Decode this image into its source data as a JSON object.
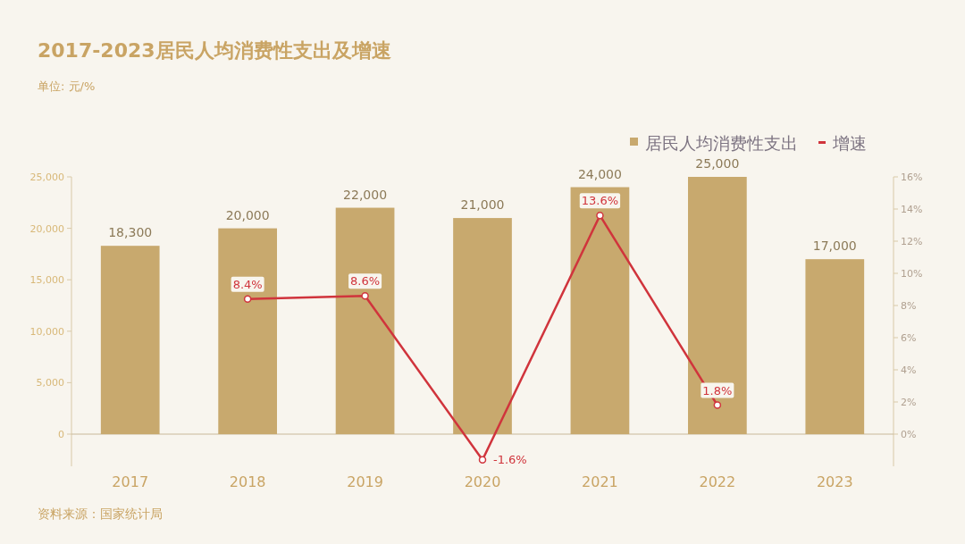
{
  "chart_data": {
    "type": "bar",
    "title": "2017-2023居民人均消费性支出及增速",
    "subtitle": "单位: 元/%",
    "annotations": [
      "资料来源：国家统计局"
    ],
    "categories": [
      "2017",
      "2018",
      "2019",
      "2020",
      "2021",
      "2022",
      "2023"
    ],
    "series": [
      {
        "name": "居民人均消费性支出",
        "color": "#c8a96e",
        "values": [
          18300,
          20000,
          22000,
          21000,
          24000,
          25000,
          17000
        ],
        "value_labels": [
          "18,300",
          "20,000",
          "22,000",
          "21,000",
          "24,000",
          "25,000",
          "17,000"
        ]
      },
      {
        "name": "增速",
        "type": "line",
        "axis": "y2",
        "color": "#d0343c",
        "values": [
          null,
          8.4,
          8.6,
          -1.6,
          13.6,
          1.8,
          null
        ],
        "value_labels": [
          null,
          "8.4%",
          "8.6%",
          "-1.6%",
          "13.6%",
          "1.8%",
          null
        ]
      }
    ],
    "ylim": [
      -3125,
      25000
    ],
    "yticks": [
      {
        "value": 0,
        "label": "0"
      },
      {
        "value": 5000,
        "label": "5,000"
      },
      {
        "value": 10000,
        "label": "10,000"
      },
      {
        "value": 15000,
        "label": "15,000"
      },
      {
        "value": 20000,
        "label": "20,000"
      },
      {
        "value": 25000,
        "label": "25,000"
      }
    ],
    "y2lim": [
      -2,
      16
    ],
    "y2ticks": [
      {
        "value": 0,
        "label": "0%"
      },
      {
        "value": 2,
        "label": "2%"
      },
      {
        "value": 4,
        "label": "4%"
      },
      {
        "value": 6,
        "label": "6%"
      },
      {
        "value": 8,
        "label": "8%"
      },
      {
        "value": 10,
        "label": "10%"
      },
      {
        "value": 12,
        "label": "12%"
      },
      {
        "value": 14,
        "label": "14%"
      },
      {
        "value": 16,
        "label": "16%"
      }
    ],
    "ref_lines": [
      {
        "axis": "y",
        "value": 0,
        "color": "#c8b89a"
      }
    ],
    "legend": "top right",
    "marker": "circle",
    "line_style": "solid"
  }
}
